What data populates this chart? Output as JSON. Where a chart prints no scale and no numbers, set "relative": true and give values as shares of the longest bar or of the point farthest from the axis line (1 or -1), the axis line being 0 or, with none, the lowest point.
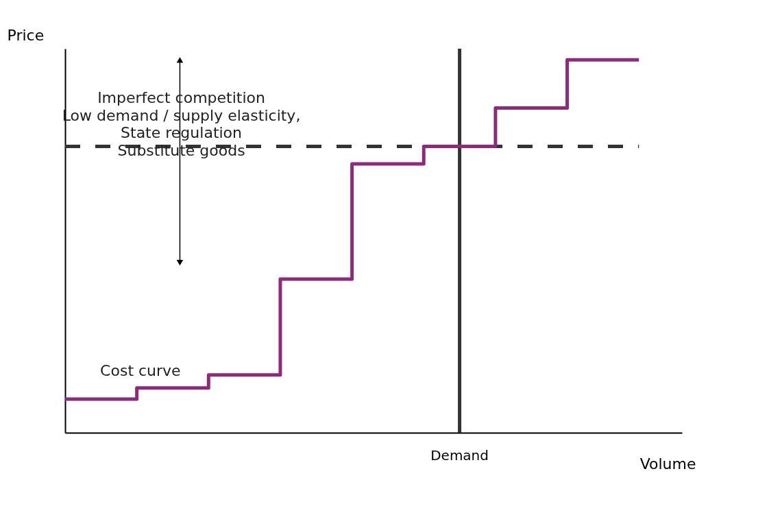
{
  "chart_data": {
    "type": "step",
    "relative": true,
    "xlabel": "Volume",
    "ylabel": "Price",
    "categories": [
      null,
      null,
      null,
      null,
      null,
      null,
      null,
      null,
      null
    ],
    "series": [
      {
        "color": "#8e2a7e",
        "values": [
          0.09,
          0.12,
          0.155,
          0.412,
          0.721,
          0.768,
          0.871,
          1.0,
          1.0
        ]
      }
    ],
    "ref_lines": [
      {
        "axis": "y",
        "value": 0.768,
        "color": "#333333",
        "line_style": "dashed"
      }
    ],
    "annotations": [
      "Imperfect competition",
      "Low demand / supply elasticity,",
      "State regulation",
      "Substitute goods",
      "Cost curve",
      "Demand"
    ],
    "grid": false,
    "line_style": "solid"
  }
}
